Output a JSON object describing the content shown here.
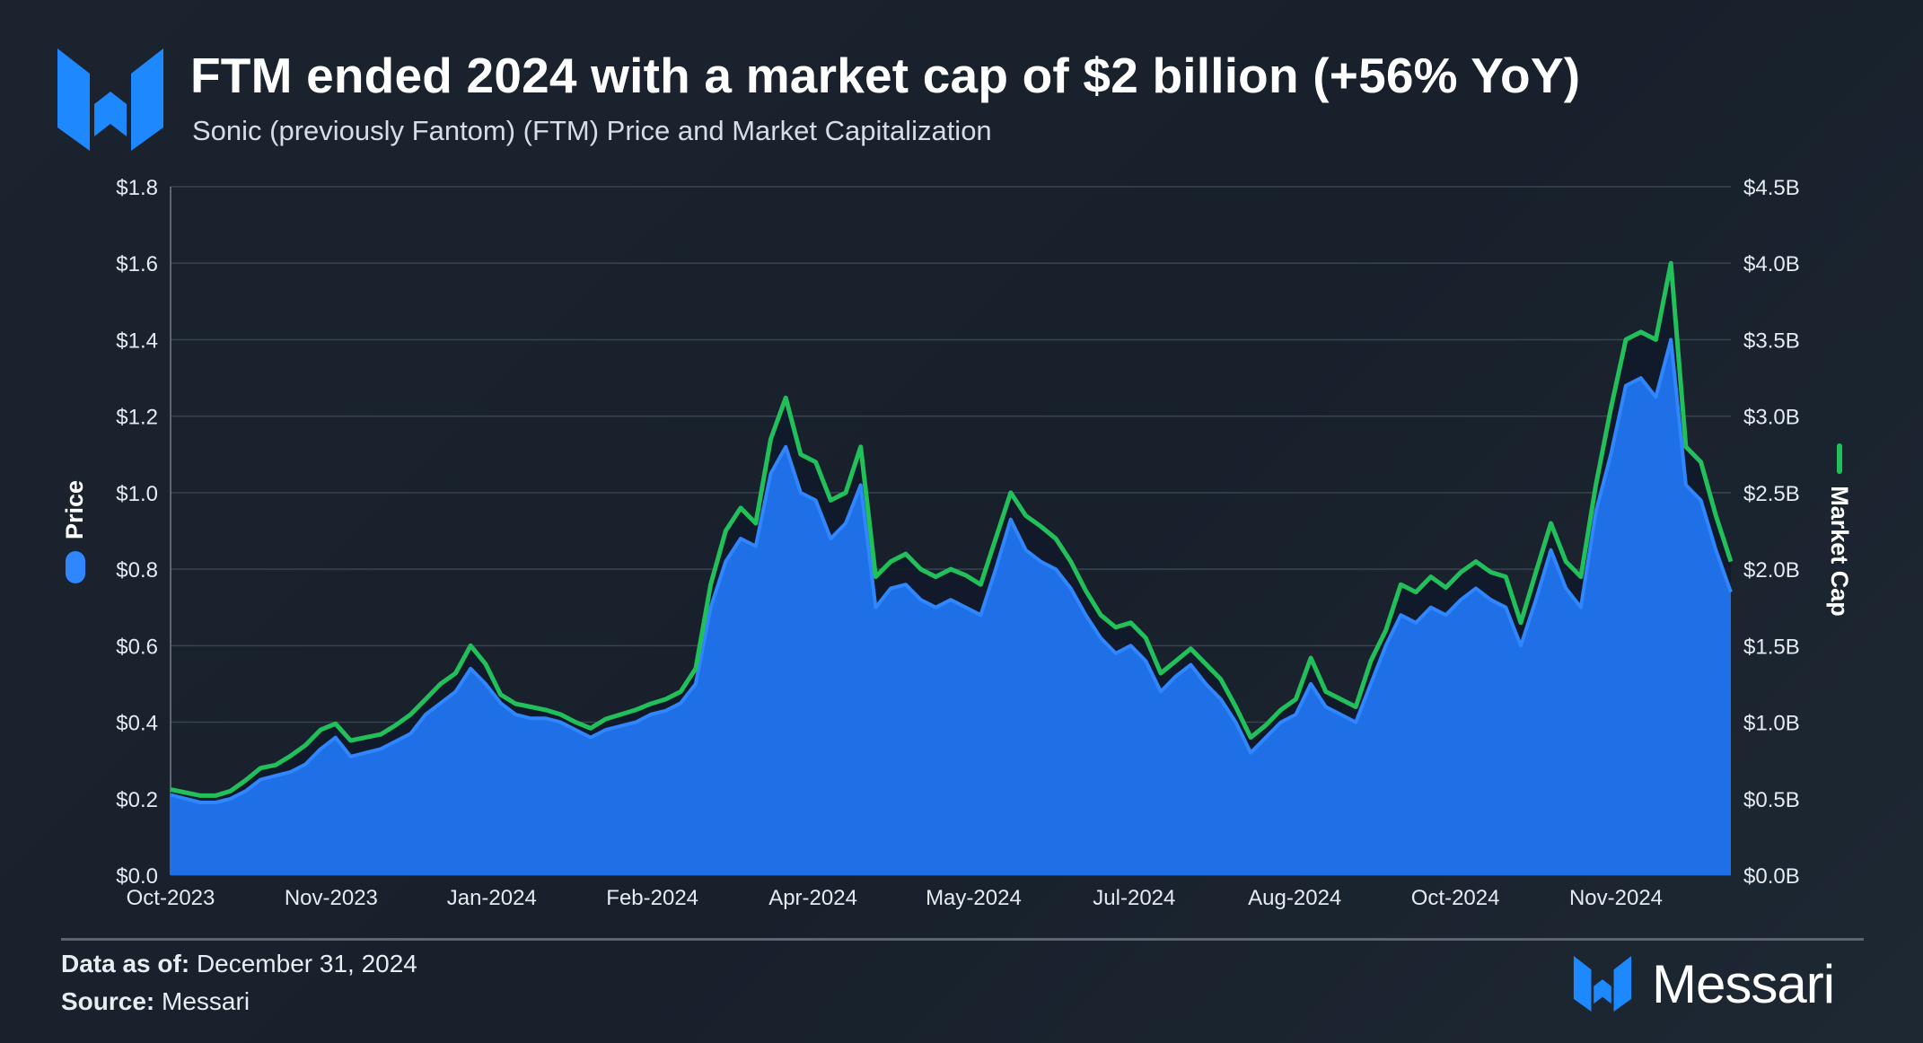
{
  "header": {
    "title": "FTM ended 2024 with a market cap of $2 billion (+56% YoY)",
    "subtitle": "Sonic (previously Fantom) (FTM) Price and Market Capitalization"
  },
  "footer": {
    "date_label": "Data as of:",
    "date_value": "December 31, 2024",
    "source_label": "Source:",
    "source_value": "Messari",
    "brand": "Messari"
  },
  "colors": {
    "price": "#1f6fe6",
    "price_line": "#2f86ff",
    "market_cap": "#21c05a",
    "grid": "#3a4350",
    "brand": "#1e88ff"
  },
  "chart_data": {
    "type": "area",
    "title": "Sonic (previously Fantom) (FTM) Price and Market Capitalization",
    "x_tick_labels": [
      "Oct-2023",
      "Nov-2023",
      "Jan-2024",
      "Feb-2024",
      "Apr-2024",
      "May-2024",
      "Jul-2024",
      "Aug-2024",
      "Oct-2024",
      "Nov-2024"
    ],
    "y_left": {
      "label": "Price",
      "ticks": [
        "$0.0",
        "$0.2",
        "$0.4",
        "$0.6",
        "$0.8",
        "$1.0",
        "$1.2",
        "$1.4",
        "$1.6",
        "$1.8"
      ],
      "range": [
        0,
        1.8
      ]
    },
    "y_right": {
      "label": "Market Cap",
      "ticks": [
        "$0.0B",
        "$0.5B",
        "$1.0B",
        "$1.5B",
        "$2.0B",
        "$2.5B",
        "$3.0B",
        "$3.5B",
        "$4.0B",
        "$4.5B"
      ],
      "range": [
        0,
        4.5
      ]
    },
    "series": [
      {
        "name": "Price",
        "axis": "left",
        "points": [
          [
            0,
            0.21
          ],
          [
            3,
            0.2
          ],
          [
            6,
            0.19
          ],
          [
            9,
            0.19
          ],
          [
            12,
            0.2
          ],
          [
            15,
            0.22
          ],
          [
            18,
            0.25
          ],
          [
            21,
            0.26
          ],
          [
            24,
            0.27
          ],
          [
            27,
            0.29
          ],
          [
            30,
            0.33
          ],
          [
            33,
            0.36
          ],
          [
            36,
            0.31
          ],
          [
            39,
            0.32
          ],
          [
            42,
            0.33
          ],
          [
            45,
            0.35
          ],
          [
            48,
            0.37
          ],
          [
            51,
            0.42
          ],
          [
            54,
            0.45
          ],
          [
            57,
            0.48
          ],
          [
            60,
            0.54
          ],
          [
            63,
            0.5
          ],
          [
            66,
            0.45
          ],
          [
            69,
            0.42
          ],
          [
            72,
            0.41
          ],
          [
            75,
            0.41
          ],
          [
            78,
            0.4
          ],
          [
            81,
            0.38
          ],
          [
            84,
            0.36
          ],
          [
            87,
            0.38
          ],
          [
            90,
            0.39
          ],
          [
            93,
            0.4
          ],
          [
            96,
            0.42
          ],
          [
            99,
            0.43
          ],
          [
            102,
            0.45
          ],
          [
            105,
            0.5
          ],
          [
            108,
            0.7
          ],
          [
            111,
            0.82
          ],
          [
            114,
            0.88
          ],
          [
            117,
            0.86
          ],
          [
            120,
            1.05
          ],
          [
            123,
            1.12
          ],
          [
            126,
            1.0
          ],
          [
            129,
            0.98
          ],
          [
            132,
            0.88
          ],
          [
            135,
            0.92
          ],
          [
            138,
            1.02
          ],
          [
            141,
            0.7
          ],
          [
            144,
            0.75
          ],
          [
            147,
            0.76
          ],
          [
            150,
            0.72
          ],
          [
            153,
            0.7
          ],
          [
            156,
            0.72
          ],
          [
            159,
            0.7
          ],
          [
            162,
            0.68
          ],
          [
            165,
            0.8
          ],
          [
            168,
            0.93
          ],
          [
            171,
            0.85
          ],
          [
            174,
            0.82
          ],
          [
            177,
            0.8
          ],
          [
            180,
            0.75
          ],
          [
            183,
            0.68
          ],
          [
            186,
            0.62
          ],
          [
            189,
            0.58
          ],
          [
            192,
            0.6
          ],
          [
            195,
            0.56
          ],
          [
            198,
            0.48
          ],
          [
            201,
            0.52
          ],
          [
            204,
            0.55
          ],
          [
            207,
            0.5
          ],
          [
            210,
            0.46
          ],
          [
            213,
            0.4
          ],
          [
            216,
            0.32
          ],
          [
            219,
            0.36
          ],
          [
            222,
            0.4
          ],
          [
            225,
            0.42
          ],
          [
            228,
            0.5
          ],
          [
            231,
            0.44
          ],
          [
            234,
            0.42
          ],
          [
            237,
            0.4
          ],
          [
            240,
            0.5
          ],
          [
            243,
            0.6
          ],
          [
            246,
            0.68
          ],
          [
            249,
            0.66
          ],
          [
            252,
            0.7
          ],
          [
            255,
            0.68
          ],
          [
            258,
            0.72
          ],
          [
            261,
            0.75
          ],
          [
            264,
            0.72
          ],
          [
            267,
            0.7
          ],
          [
            270,
            0.6
          ],
          [
            273,
            0.72
          ],
          [
            276,
            0.85
          ],
          [
            279,
            0.75
          ],
          [
            282,
            0.7
          ],
          [
            285,
            0.95
          ],
          [
            288,
            1.1
          ],
          [
            291,
            1.28
          ],
          [
            294,
            1.3
          ],
          [
            297,
            1.25
          ],
          [
            300,
            1.4
          ],
          [
            303,
            1.02
          ],
          [
            306,
            0.98
          ],
          [
            309,
            0.85
          ],
          [
            312,
            0.74
          ]
        ]
      },
      {
        "name": "Market Cap",
        "axis": "right",
        "points": [
          [
            0,
            0.56
          ],
          [
            3,
            0.54
          ],
          [
            6,
            0.52
          ],
          [
            9,
            0.52
          ],
          [
            12,
            0.55
          ],
          [
            15,
            0.62
          ],
          [
            18,
            0.7
          ],
          [
            21,
            0.72
          ],
          [
            24,
            0.78
          ],
          [
            27,
            0.85
          ],
          [
            30,
            0.95
          ],
          [
            33,
            0.99
          ],
          [
            36,
            0.88
          ],
          [
            39,
            0.9
          ],
          [
            42,
            0.92
          ],
          [
            45,
            0.98
          ],
          [
            48,
            1.05
          ],
          [
            51,
            1.15
          ],
          [
            54,
            1.25
          ],
          [
            57,
            1.32
          ],
          [
            60,
            1.5
          ],
          [
            63,
            1.38
          ],
          [
            66,
            1.18
          ],
          [
            69,
            1.12
          ],
          [
            72,
            1.1
          ],
          [
            75,
            1.08
          ],
          [
            78,
            1.05
          ],
          [
            81,
            1.0
          ],
          [
            84,
            0.96
          ],
          [
            87,
            1.02
          ],
          [
            90,
            1.05
          ],
          [
            93,
            1.08
          ],
          [
            96,
            1.12
          ],
          [
            99,
            1.15
          ],
          [
            102,
            1.2
          ],
          [
            105,
            1.35
          ],
          [
            108,
            1.9
          ],
          [
            111,
            2.25
          ],
          [
            114,
            2.4
          ],
          [
            117,
            2.3
          ],
          [
            120,
            2.85
          ],
          [
            123,
            3.12
          ],
          [
            126,
            2.75
          ],
          [
            129,
            2.7
          ],
          [
            132,
            2.45
          ],
          [
            135,
            2.5
          ],
          [
            138,
            2.8
          ],
          [
            141,
            1.95
          ],
          [
            144,
            2.05
          ],
          [
            147,
            2.1
          ],
          [
            150,
            2.0
          ],
          [
            153,
            1.95
          ],
          [
            156,
            2.0
          ],
          [
            159,
            1.96
          ],
          [
            162,
            1.9
          ],
          [
            165,
            2.2
          ],
          [
            168,
            2.5
          ],
          [
            171,
            2.35
          ],
          [
            174,
            2.28
          ],
          [
            177,
            2.2
          ],
          [
            180,
            2.05
          ],
          [
            183,
            1.86
          ],
          [
            186,
            1.7
          ],
          [
            189,
            1.62
          ],
          [
            192,
            1.65
          ],
          [
            195,
            1.55
          ],
          [
            198,
            1.32
          ],
          [
            201,
            1.4
          ],
          [
            204,
            1.48
          ],
          [
            207,
            1.38
          ],
          [
            210,
            1.28
          ],
          [
            213,
            1.1
          ],
          [
            216,
            0.9
          ],
          [
            219,
            0.98
          ],
          [
            222,
            1.08
          ],
          [
            225,
            1.15
          ],
          [
            228,
            1.42
          ],
          [
            231,
            1.2
          ],
          [
            234,
            1.15
          ],
          [
            237,
            1.1
          ],
          [
            240,
            1.4
          ],
          [
            243,
            1.6
          ],
          [
            246,
            1.9
          ],
          [
            249,
            1.85
          ],
          [
            252,
            1.95
          ],
          [
            255,
            1.88
          ],
          [
            258,
            1.98
          ],
          [
            261,
            2.05
          ],
          [
            264,
            1.98
          ],
          [
            267,
            1.95
          ],
          [
            270,
            1.65
          ],
          [
            273,
            1.98
          ],
          [
            276,
            2.3
          ],
          [
            279,
            2.05
          ],
          [
            282,
            1.95
          ],
          [
            285,
            2.55
          ],
          [
            288,
            3.05
          ],
          [
            291,
            3.5
          ],
          [
            294,
            3.55
          ],
          [
            297,
            3.5
          ],
          [
            300,
            4.0
          ],
          [
            303,
            2.8
          ],
          [
            306,
            2.7
          ],
          [
            309,
            2.35
          ],
          [
            312,
            2.05
          ]
        ]
      }
    ],
    "x_range": [
      0,
      312
    ],
    "legend": [
      "Price",
      "Market Cap"
    ],
    "grid": true
  }
}
